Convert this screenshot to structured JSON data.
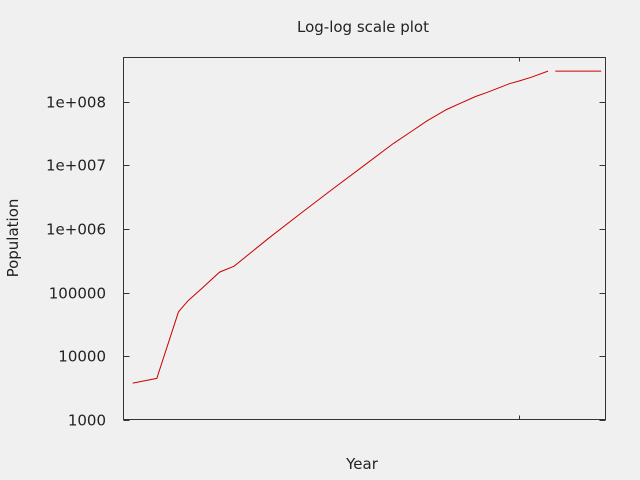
{
  "chart_data": {
    "type": "line",
    "title": "Log-log scale plot",
    "xlabel": "Year",
    "ylabel": "Population",
    "y_scale": "log",
    "ylim": [
      1000,
      400000000
    ],
    "y_ticks": [
      1000,
      10000,
      100000,
      1000000,
      10000000,
      100000000
    ],
    "y_tick_labels": [
      "1000",
      "10000",
      "100000",
      "1e+006",
      "1e+007",
      "1e+008"
    ],
    "x_scale": "log",
    "x_tick_labels": [],
    "legend": "none",
    "grid": false,
    "series": [
      {
        "color": "#cc0000",
        "points": [
          {
            "x": 0.02,
            "y": 3800
          },
          {
            "x": 0.07,
            "y": 4500
          },
          {
            "x": 0.115,
            "y": 50000
          },
          {
            "x": 0.135,
            "y": 75000
          },
          {
            "x": 0.165,
            "y": 120000
          },
          {
            "x": 0.2,
            "y": 210000
          },
          {
            "x": 0.23,
            "y": 260000
          },
          {
            "x": 0.3,
            "y": 700000
          },
          {
            "x": 0.37,
            "y": 1800000
          },
          {
            "x": 0.43,
            "y": 4000000
          },
          {
            "x": 0.5,
            "y": 10000000
          },
          {
            "x": 0.56,
            "y": 22000000
          },
          {
            "x": 0.6,
            "y": 35000000
          },
          {
            "x": 0.63,
            "y": 50000000
          },
          {
            "x": 0.67,
            "y": 75000000
          },
          {
            "x": 0.7,
            "y": 95000000
          },
          {
            "x": 0.73,
            "y": 120000000
          },
          {
            "x": 0.755,
            "y": 140000000
          },
          {
            "x": 0.8,
            "y": 190000000
          },
          {
            "x": 0.82,
            "y": 210000000
          },
          {
            "x": 0.845,
            "y": 240000000
          },
          {
            "x": 0.88,
            "y": 300000000
          }
        ]
      },
      {
        "color": "#cc0000",
        "points": [
          {
            "x": 0.895,
            "y": 300000000
          },
          {
            "x": 0.99,
            "y": 300000000
          }
        ]
      }
    ]
  }
}
